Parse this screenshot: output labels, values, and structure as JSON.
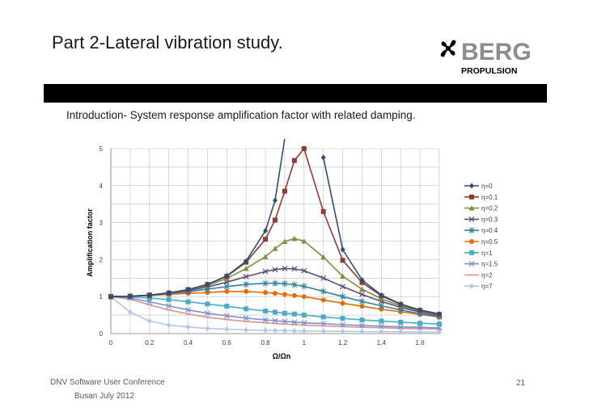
{
  "slide": {
    "title": "Part 2-Lateral vibration study.",
    "subtitle": "Introduction- System response amplification factor with related damping.",
    "footer_line1": "DNV Software User Conference",
    "footer_line2": "Busan July 2012",
    "page_number": "21"
  },
  "logo": {
    "text_top": "BERG",
    "text_bottom": "PROPULSION",
    "icon": "propeller-icon",
    "color_top": "#8c8c8c",
    "color_bottom": "#000000"
  },
  "chart_data": {
    "type": "line",
    "xlabel": "Ω/Ωn",
    "ylabel": "Amplification factor",
    "xlim": [
      0,
      1.7
    ],
    "ylim": [
      0,
      5
    ],
    "xticks": [
      0,
      0.2,
      0.4,
      0.6,
      0.8,
      1,
      1.2,
      1.4,
      1.6
    ],
    "yticks": [
      0,
      1,
      2,
      3,
      4,
      5
    ],
    "grid": true,
    "legend_position": "right",
    "x": [
      0,
      0.1,
      0.2,
      0.3,
      0.4,
      0.5,
      0.6,
      0.7,
      0.8,
      0.85,
      0.9,
      0.95,
      1,
      1.1,
      1.2,
      1.3,
      1.4,
      1.5,
      1.6,
      1.7
    ],
    "series": [
      {
        "name": "η=0",
        "color": "#2e4d7b",
        "marker": "diamond",
        "values": [
          1,
          1.01,
          1.04,
          1.1,
          1.19,
          1.33,
          1.56,
          1.96,
          2.78,
          3.6,
          5.26,
          null,
          null,
          4.76,
          2.27,
          1.45,
          1.04,
          0.8,
          0.64,
          0.53
        ]
      },
      {
        "name": "η=0.1",
        "color": "#953735",
        "marker": "square",
        "values": [
          1,
          1.01,
          1.04,
          1.1,
          1.19,
          1.33,
          1.55,
          1.93,
          2.55,
          3.07,
          3.85,
          4.68,
          5.0,
          3.3,
          1.98,
          1.38,
          1.02,
          0.79,
          0.63,
          0.52
        ]
      },
      {
        "name": "η=0.2",
        "color": "#77933c",
        "marker": "triangle",
        "values": [
          1,
          1.01,
          1.04,
          1.09,
          1.18,
          1.3,
          1.49,
          1.76,
          2.08,
          2.3,
          2.49,
          2.57,
          2.5,
          2.07,
          1.55,
          1.2,
          0.94,
          0.75,
          0.61,
          0.5
        ]
      },
      {
        "name": "η=0.3",
        "color": "#604a7b",
        "marker": "x",
        "values": [
          1,
          1.01,
          1.04,
          1.09,
          1.16,
          1.26,
          1.39,
          1.54,
          1.68,
          1.73,
          1.76,
          1.75,
          1.7,
          1.5,
          1.27,
          1.06,
          0.87,
          0.71,
          0.58,
          0.48
        ]
      },
      {
        "name": "η=0.4",
        "color": "#31859c",
        "marker": "star",
        "values": [
          1,
          1.01,
          1.03,
          1.08,
          1.13,
          1.2,
          1.27,
          1.33,
          1.36,
          1.36,
          1.35,
          1.32,
          1.28,
          1.14,
          1.0,
          0.87,
          0.75,
          0.64,
          0.54,
          0.45
        ]
      },
      {
        "name": "η=0.5",
        "color": "#e46c0a",
        "marker": "circle",
        "values": [
          1,
          1.01,
          1.03,
          1.06,
          1.09,
          1.11,
          1.14,
          1.14,
          1.11,
          1.09,
          1.06,
          1.03,
          1.0,
          0.91,
          0.82,
          0.74,
          0.66,
          0.59,
          0.52,
          0.45
        ]
      },
      {
        "name": "η=1",
        "color": "#4bacc6",
        "marker": "square",
        "values": [
          1,
          0.99,
          0.96,
          0.92,
          0.86,
          0.8,
          0.74,
          0.67,
          0.61,
          0.58,
          0.55,
          0.53,
          0.5,
          0.45,
          0.41,
          0.37,
          0.34,
          0.31,
          0.28,
          0.26
        ]
      },
      {
        "name": "η=1.5",
        "color": "#7c8fd0",
        "marker": "x",
        "values": [
          1,
          0.96,
          0.86,
          0.75,
          0.64,
          0.55,
          0.48,
          0.42,
          0.37,
          0.35,
          0.33,
          0.31,
          0.29,
          0.27,
          0.24,
          0.22,
          0.2,
          0.18,
          0.17,
          0.15
        ]
      },
      {
        "name": "η=2",
        "color": "#d99594",
        "marker": "dash",
        "values": [
          1,
          0.93,
          0.78,
          0.64,
          0.53,
          0.44,
          0.38,
          0.33,
          0.29,
          0.27,
          0.26,
          0.24,
          0.23,
          0.21,
          0.19,
          0.17,
          0.16,
          0.14,
          0.13,
          0.12
        ]
      },
      {
        "name": "η=7",
        "color": "#b3c6e7",
        "marker": "diamond",
        "values": [
          1,
          0.58,
          0.34,
          0.23,
          0.18,
          0.14,
          0.12,
          0.1,
          0.09,
          0.085,
          0.08,
          0.075,
          0.07,
          0.066,
          0.06,
          0.055,
          0.05,
          0.047,
          0.044,
          0.042
        ]
      }
    ]
  }
}
